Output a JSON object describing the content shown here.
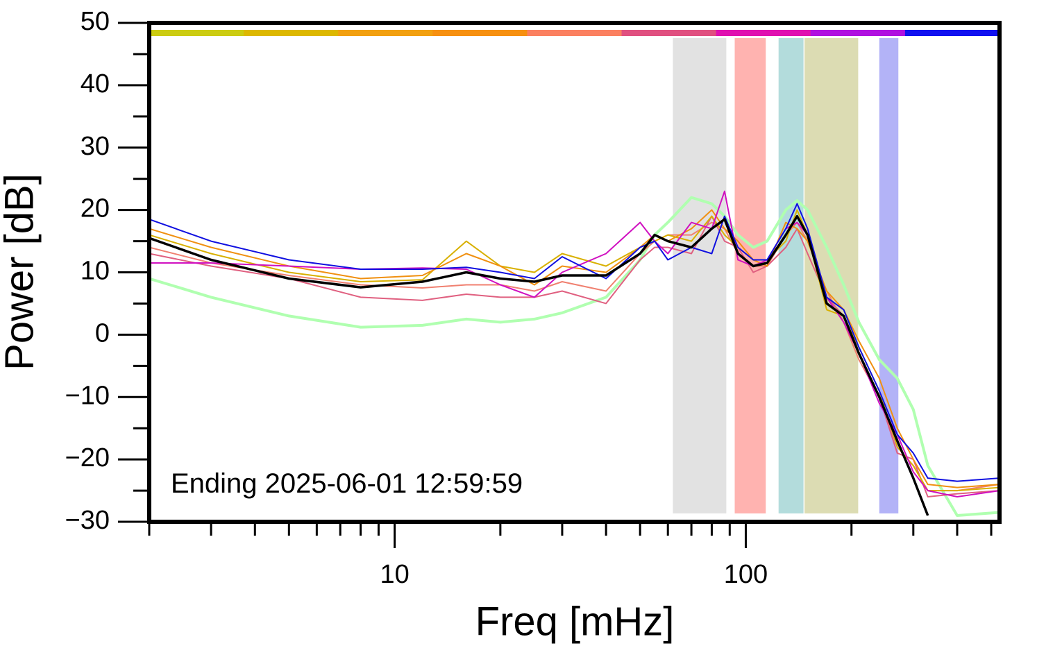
{
  "chart_data": {
    "type": "line",
    "xlabel": "Freq [mHz]",
    "ylabel": "Power [dB]",
    "annotation": "Ending 2025-06-01 12:59:59",
    "xscale": "log",
    "xlim": [
      2,
      528
    ],
    "ylim": [
      -30,
      50
    ],
    "xticks": [
      10,
      100
    ],
    "xminorticks": [
      2,
      3,
      4,
      5,
      6,
      7,
      8,
      9,
      20,
      30,
      40,
      50,
      60,
      70,
      80,
      90,
      200,
      300,
      400,
      500
    ],
    "yticks": [
      {
        "value": -30,
        "label": "−30"
      },
      {
        "value": -20,
        "label": "−20"
      },
      {
        "value": -10,
        "label": "−10"
      },
      0,
      10,
      20,
      30,
      40,
      50
    ],
    "yminorticks": [
      -25,
      -15,
      -5,
      5,
      15,
      25,
      35,
      45
    ],
    "colorbar": [
      "#cccc11",
      "#ddb800",
      "#f2a010",
      "#f79010",
      "#fb8060",
      "#e05080",
      "#e010b0",
      "#b010e0",
      "#1010f0"
    ],
    "bands": [
      {
        "xmin": 62,
        "xmax": 88,
        "color": "#e2e2e2"
      },
      {
        "xmin": 93,
        "xmax": 114,
        "color": "#ffb3b0"
      },
      {
        "xmin": 124,
        "xmax": 146,
        "color": "#b3dcdc"
      },
      {
        "xmin": 147,
        "xmax": 209,
        "color": "#dcdcb3"
      },
      {
        "xmin": 240,
        "xmax": 272,
        "color": "#b3b3f7"
      }
    ],
    "x": [
      2,
      3,
      5,
      8,
      12,
      16,
      20,
      25,
      30,
      40,
      50,
      55,
      60,
      70,
      80,
      87,
      95,
      105,
      115,
      130,
      140,
      150,
      170,
      190,
      210,
      240,
      270,
      300,
      330,
      400,
      528
    ],
    "series": [
      {
        "color": "#b0ffb0",
        "width": 4,
        "values": [
          9,
          6,
          3,
          1.2,
          1.5,
          2.5,
          2,
          2.5,
          3.5,
          6,
          12,
          16,
          18,
          22,
          21,
          19,
          16,
          14,
          15,
          20,
          21.5,
          20,
          14,
          8,
          2,
          -4,
          -7,
          -12,
          -21,
          -29,
          -28.5
        ]
      },
      {
        "color": "#f08070",
        "width": 2,
        "values": [
          14,
          11.5,
          9.5,
          8,
          7.5,
          8,
          8,
          7,
          8.5,
          7,
          13,
          15,
          16,
          16,
          18,
          17,
          13,
          11,
          11,
          16,
          18,
          15,
          7,
          2,
          -4,
          -10,
          -18,
          -21,
          -25,
          -25,
          -24
        ]
      },
      {
        "color": "#e06080",
        "width": 2,
        "values": [
          13,
          11,
          9,
          6,
          5.5,
          6.5,
          6,
          6,
          7,
          5,
          12,
          14,
          14,
          13,
          19,
          15,
          14,
          10,
          11,
          14,
          17,
          13,
          6,
          3,
          -3,
          -10,
          -19,
          -20,
          -26,
          -25.5,
          -25
        ]
      },
      {
        "color": "#d8b000",
        "width": 2,
        "values": [
          16,
          13,
          10,
          8.5,
          8.8,
          15,
          11,
          10,
          13,
          11,
          14,
          15,
          16,
          15,
          19,
          16,
          14,
          12,
          12,
          15,
          20,
          16,
          4,
          3,
          -2,
          -9,
          -18,
          -21,
          -25,
          -25,
          -24.5
        ]
      },
      {
        "color": "#f09010",
        "width": 2,
        "values": [
          17,
          14,
          11,
          9,
          9.5,
          13,
          11,
          8,
          11,
          10,
          14,
          16,
          15,
          17,
          20,
          17,
          15,
          12,
          11,
          18,
          17,
          15,
          7,
          4,
          -1,
          -7,
          -15,
          -20,
          -24,
          -24.5,
          -24
        ]
      },
      {
        "color": "#d010c0",
        "width": 2,
        "values": [
          11.5,
          11.5,
          11,
          10.5,
          10.7,
          10.5,
          8,
          6,
          10,
          13,
          18,
          15,
          13,
          18,
          17,
          23,
          12,
          11,
          12,
          17,
          18,
          16,
          6,
          2,
          -3,
          -11,
          -16,
          -22,
          -25,
          -26,
          -25
        ]
      },
      {
        "color": "#1010e0",
        "width": 2,
        "values": [
          18.5,
          15,
          12,
          10.5,
          10.5,
          10.8,
          10,
          9,
          12.5,
          9,
          14,
          15,
          12,
          14,
          13,
          19,
          14,
          12,
          12,
          17,
          21,
          17,
          6,
          4,
          -2,
          -9,
          -16,
          -19,
          -23,
          -23.5,
          -23
        ]
      },
      {
        "color": "#000000",
        "width": 3.5,
        "values": [
          15.5,
          12,
          9,
          7.6,
          8.5,
          10,
          9,
          8.5,
          9.5,
          9.5,
          13,
          16,
          15,
          14,
          17,
          18.5,
          13,
          11,
          11.5,
          16,
          19,
          16,
          5,
          3,
          -3,
          -10,
          -17,
          -23,
          -29,
          null,
          null
        ]
      }
    ]
  }
}
